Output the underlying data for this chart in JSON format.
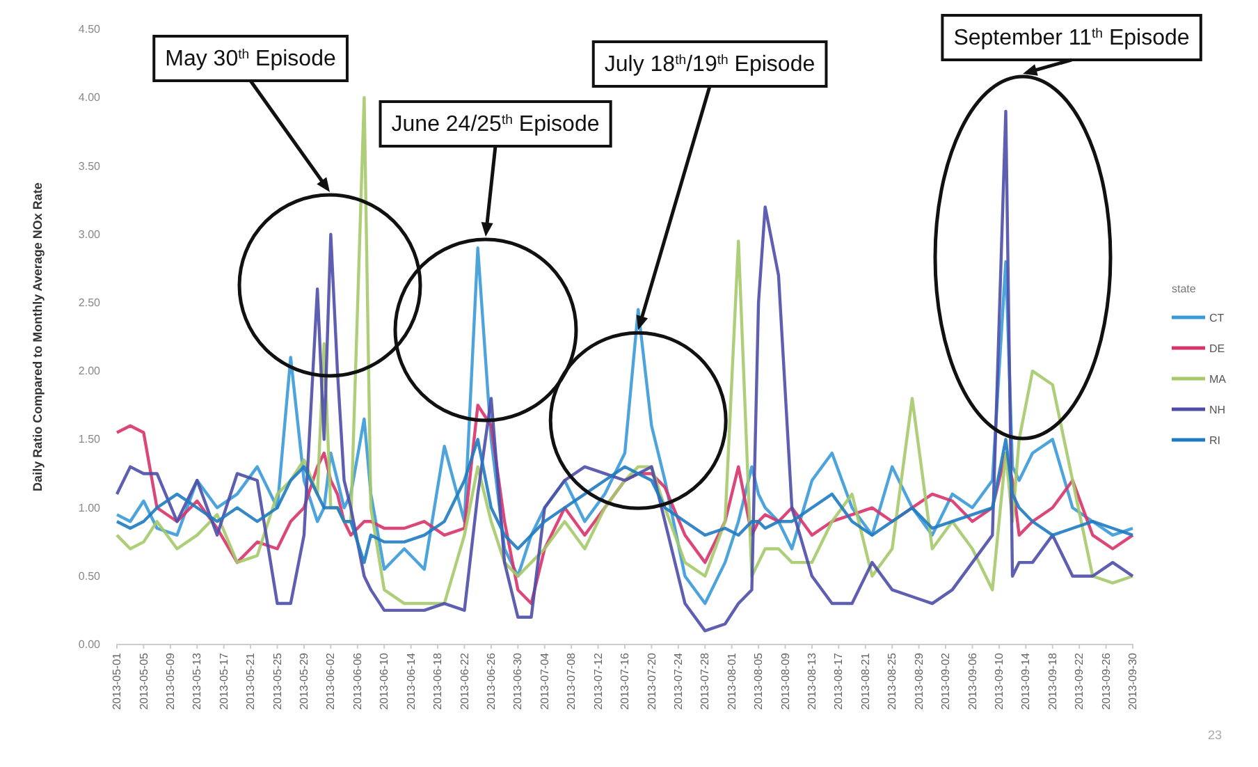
{
  "chart_data": {
    "type": "line",
    "ylabel": "Daily Ratio Compared to Monthly Average NOx Rate",
    "legend_title": "state",
    "legend": "right",
    "x": [
      "2013-05-01",
      "2013-05-03",
      "2013-05-05",
      "2013-05-07",
      "2013-05-10",
      "2013-05-13",
      "2013-05-16",
      "2013-05-19",
      "2013-05-22",
      "2013-05-25",
      "2013-05-27",
      "2013-05-29",
      "2013-05-31",
      "2013-06-01",
      "2013-06-02",
      "2013-06-03",
      "2013-06-04",
      "2013-06-05",
      "2013-06-07",
      "2013-06-08",
      "2013-06-10",
      "2013-06-13",
      "2013-06-16",
      "2013-06-19",
      "2013-06-22",
      "2013-06-24",
      "2013-06-26",
      "2013-06-28",
      "2013-06-30",
      "2013-07-02",
      "2013-07-04",
      "2013-07-07",
      "2013-07-10",
      "2013-07-13",
      "2013-07-16",
      "2013-07-18",
      "2013-07-20",
      "2013-07-22",
      "2013-07-25",
      "2013-07-28",
      "2013-07-31",
      "2013-08-02",
      "2013-08-04",
      "2013-08-05",
      "2013-08-06",
      "2013-08-08",
      "2013-08-10",
      "2013-08-13",
      "2013-08-16",
      "2013-08-19",
      "2013-08-22",
      "2013-08-25",
      "2013-08-28",
      "2013-08-31",
      "2013-09-03",
      "2013-09-06",
      "2013-09-09",
      "2013-09-11",
      "2013-09-12",
      "2013-09-13",
      "2013-09-15",
      "2013-09-18",
      "2013-09-21",
      "2013-09-24",
      "2013-09-27",
      "2013-09-30"
    ],
    "series": [
      {
        "name": "CT",
        "color": "#3a9ad9",
        "values": [
          0.95,
          0.9,
          1.05,
          0.85,
          0.8,
          1.2,
          1.0,
          1.1,
          1.3,
          1.0,
          2.1,
          1.2,
          0.9,
          1.0,
          1.4,
          1.2,
          1.0,
          1.1,
          1.65,
          1.1,
          0.55,
          0.7,
          0.55,
          1.45,
          0.9,
          2.9,
          1.5,
          0.7,
          0.5,
          0.8,
          1.0,
          1.2,
          0.9,
          1.1,
          1.4,
          2.45,
          1.6,
          1.2,
          0.5,
          0.3,
          0.6,
          0.9,
          1.3,
          1.1,
          1.0,
          0.9,
          0.7,
          1.2,
          1.4,
          1.0,
          0.8,
          1.3,
          1.0,
          0.8,
          1.1,
          1.0,
          1.2,
          2.8,
          1.3,
          1.2,
          1.4,
          1.5,
          1.0,
          0.9,
          0.8,
          0.85
        ]
      },
      {
        "name": "DE",
        "color": "#d8336a",
        "values": [
          1.55,
          1.6,
          1.55,
          1.0,
          0.9,
          1.05,
          0.85,
          0.6,
          0.75,
          0.7,
          0.9,
          1.0,
          1.3,
          1.4,
          1.2,
          1.1,
          0.9,
          0.8,
          0.9,
          0.9,
          0.85,
          0.85,
          0.9,
          0.8,
          0.85,
          1.75,
          1.6,
          0.9,
          0.4,
          0.3,
          0.7,
          1.0,
          0.8,
          1.0,
          1.2,
          1.25,
          1.25,
          1.15,
          0.8,
          0.6,
          0.9,
          1.3,
          0.8,
          0.9,
          0.95,
          0.9,
          1.0,
          0.8,
          0.9,
          0.95,
          1.0,
          0.9,
          1.0,
          1.1,
          1.05,
          0.9,
          1.0,
          1.4,
          1.2,
          0.8,
          0.9,
          1.0,
          1.2,
          0.8,
          0.7,
          0.8
        ]
      },
      {
        "name": "MA",
        "color": "#a6c96a",
        "values": [
          0.8,
          0.7,
          0.75,
          0.9,
          0.7,
          0.8,
          0.95,
          0.6,
          0.65,
          1.1,
          1.2,
          1.35,
          1.1,
          2.2,
          1.0,
          1.0,
          0.9,
          0.9,
          4.0,
          1.0,
          0.4,
          0.3,
          0.3,
          0.3,
          0.8,
          1.3,
          0.9,
          0.6,
          0.5,
          0.6,
          0.7,
          0.9,
          0.7,
          1.0,
          1.2,
          1.3,
          1.3,
          1.0,
          0.6,
          0.5,
          0.9,
          2.95,
          0.5,
          0.6,
          0.7,
          0.7,
          0.6,
          0.6,
          0.9,
          1.1,
          0.5,
          0.7,
          1.8,
          0.7,
          0.9,
          0.7,
          0.4,
          1.4,
          0.9,
          1.5,
          2.0,
          1.9,
          1.2,
          0.5,
          0.45,
          0.5
        ]
      },
      {
        "name": "NH",
        "color": "#4d4ea8",
        "values": [
          1.1,
          1.3,
          1.25,
          1.25,
          0.9,
          1.2,
          0.8,
          1.25,
          1.2,
          0.3,
          0.3,
          0.8,
          2.6,
          1.5,
          3.0,
          2.0,
          1.2,
          1.0,
          0.5,
          0.4,
          0.25,
          0.25,
          0.25,
          0.3,
          0.25,
          1.1,
          1.8,
          0.6,
          0.2,
          0.2,
          1.0,
          1.2,
          1.3,
          1.25,
          1.2,
          1.25,
          1.3,
          0.9,
          0.3,
          0.1,
          0.15,
          0.3,
          0.4,
          2.5,
          3.2,
          2.7,
          1.0,
          0.5,
          0.3,
          0.3,
          0.6,
          0.4,
          0.35,
          0.3,
          0.4,
          0.6,
          0.8,
          3.9,
          0.5,
          0.6,
          0.6,
          0.8,
          0.5,
          0.5,
          0.6,
          0.5
        ]
      },
      {
        "name": "RI",
        "color": "#1f7bc1",
        "values": [
          0.9,
          0.85,
          0.9,
          1.0,
          1.1,
          1.0,
          0.9,
          1.0,
          0.9,
          1.0,
          1.2,
          1.3,
          1.1,
          1.0,
          1.0,
          1.0,
          0.9,
          0.9,
          0.6,
          0.8,
          0.75,
          0.75,
          0.8,
          0.9,
          1.2,
          1.5,
          1.0,
          0.8,
          0.7,
          0.8,
          0.9,
          1.0,
          1.1,
          1.2,
          1.3,
          1.25,
          1.2,
          1.0,
          0.9,
          0.8,
          0.85,
          0.8,
          0.9,
          0.9,
          0.85,
          0.9,
          0.9,
          1.0,
          1.1,
          0.9,
          0.8,
          0.9,
          1.0,
          0.85,
          0.9,
          0.95,
          1.0,
          1.5,
          1.1,
          1.0,
          0.9,
          0.8,
          0.85,
          0.9,
          0.85,
          0.8
        ]
      }
    ],
    "xlim": [
      "2013-05-01",
      "2013-09-30"
    ],
    "xticks": [
      {
        "value": "2013-05-01",
        "label": "2013-05-01"
      },
      {
        "value": "2013-05-05",
        "label": "2013-05-05"
      },
      {
        "value": "2013-05-09",
        "label": "2013-05-09"
      },
      {
        "value": "2013-05-13",
        "label": "2013-05-13"
      },
      {
        "value": "2013-05-17",
        "label": "2013-05-17"
      },
      {
        "value": "2013-05-21",
        "label": "2013-05-21"
      },
      {
        "value": "2013-05-25",
        "label": "2013-05-25"
      },
      {
        "value": "2013-05-29",
        "label": "2013-05-29"
      },
      {
        "value": "2013-06-02",
        "label": "2013-06-02"
      },
      {
        "value": "2013-06-06",
        "label": "2013-06-06"
      },
      {
        "value": "2013-06-10",
        "label": "2013-06-10"
      },
      {
        "value": "2013-06-14",
        "label": "2013-06-14"
      },
      {
        "value": "2013-06-18",
        "label": "2013-06-18"
      },
      {
        "value": "2013-06-22",
        "label": "2013-06-22"
      },
      {
        "value": "2013-06-26",
        "label": "2013-06-26"
      },
      {
        "value": "2013-06-30",
        "label": "2013-06-30"
      },
      {
        "value": "2013-07-04",
        "label": "2013-07-04"
      },
      {
        "value": "2013-07-08",
        "label": "2013-07-08"
      },
      {
        "value": "2013-07-12",
        "label": "2013-07-12"
      },
      {
        "value": "2013-07-16",
        "label": "2013-07-16"
      },
      {
        "value": "2013-07-20",
        "label": "2013-07-20"
      },
      {
        "value": "2013-07-24",
        "label": "2013-07-24"
      },
      {
        "value": "2013-07-28",
        "label": "2013-07-28"
      },
      {
        "value": "2013-08-01",
        "label": "2013-08-01"
      },
      {
        "value": "2013-08-05",
        "label": "2013-08-05"
      },
      {
        "value": "2013-08-09",
        "label": "2013-08-09"
      },
      {
        "value": "2013-08-13",
        "label": "2013-08-13"
      },
      {
        "value": "2013-08-17",
        "label": "2013-08-17"
      },
      {
        "value": "2013-08-21",
        "label": "2013-08-21"
      },
      {
        "value": "2013-08-25",
        "label": "2013-08-25"
      },
      {
        "value": "2013-08-29",
        "label": "2013-08-29"
      },
      {
        "value": "2013-09-02",
        "label": "2013-09-02"
      },
      {
        "value": "2013-09-06",
        "label": "2013-09-06"
      },
      {
        "value": "2013-09-10",
        "label": "2013-09-10"
      },
      {
        "value": "2013-09-14",
        "label": "2013-09-14"
      },
      {
        "value": "2013-09-18",
        "label": "2013-09-18"
      },
      {
        "value": "2013-09-22",
        "label": "2013-09-22"
      },
      {
        "value": "2013-09-26",
        "label": "2013-09-26"
      },
      {
        "value": "2013-09-30",
        "label": "2013-09-30"
      }
    ],
    "ylim": [
      0,
      4.5
    ],
    "yticks": [
      {
        "value": 0,
        "label": "0.00"
      },
      {
        "value": 0.5,
        "label": "0.50"
      },
      {
        "value": 1,
        "label": "1.00"
      },
      {
        "value": 1.5,
        "label": "1.50"
      },
      {
        "value": 2,
        "label": "2.00"
      },
      {
        "value": 2.5,
        "label": "2.50"
      },
      {
        "value": 3,
        "label": "3.00"
      },
      {
        "value": 3.5,
        "label": "3.50"
      },
      {
        "value": 4,
        "label": "4.00"
      },
      {
        "value": 4.5,
        "label": "4.50"
      }
    ],
    "grid": false,
    "marker": "none",
    "line_style": "solid",
    "annotations": [
      "May 30$^{th}$ Episode",
      "June 24/25$^{th}$ Episode",
      {
        "text": "July 18$^{th}$/19$^{th}$ Episode",
        "x": "2013-07-18",
        "y": 2.3
      },
      "September 11$^{th}$ Episode",
      "23"
    ]
  }
}
